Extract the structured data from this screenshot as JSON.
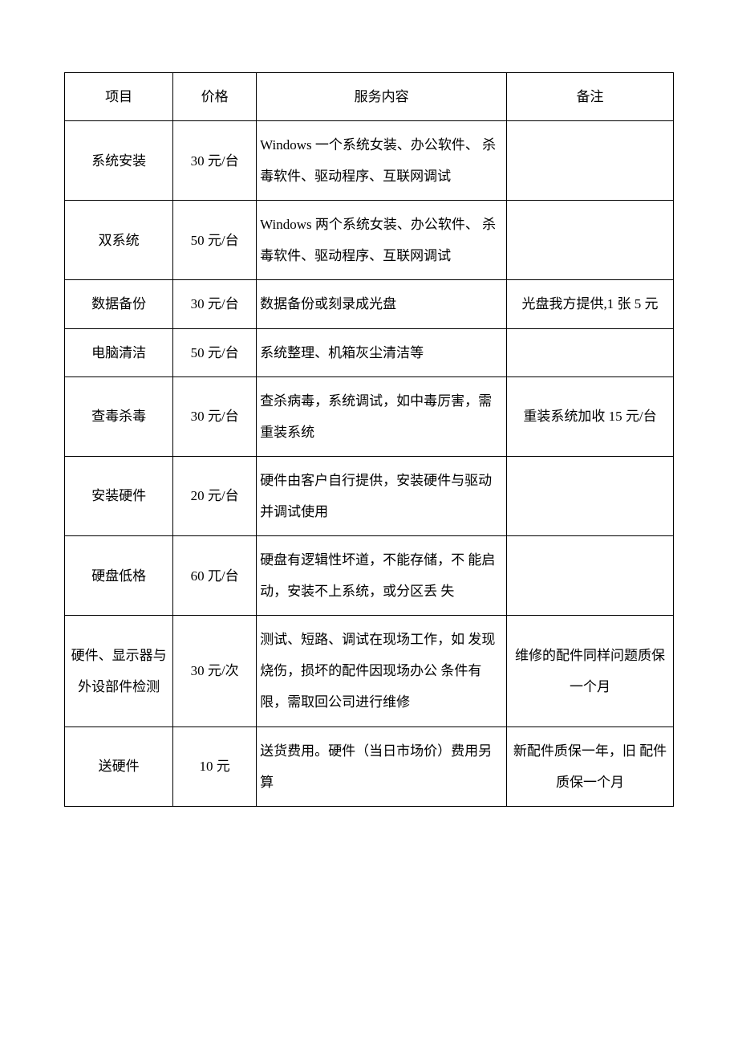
{
  "table": {
    "border_color": "#000000",
    "text_color": "#000000",
    "background_color": "#ffffff",
    "font_size_pt": 13,
    "line_height": 2.3,
    "headers": {
      "item": "项目",
      "price": "价格",
      "content": "服务内容",
      "note": "备注"
    },
    "rows": [
      {
        "item": "系统安装",
        "price": "30 元/台",
        "content": "Windows 一个系统女装、办公软件、\n杀毒软件、驱动程序、互联网调试",
        "note": ""
      },
      {
        "item": "双系统",
        "price": "50 元/台",
        "content": "Windows 两个系统女装、办公软件、\n杀毒软件、驱动程序、互联网调试",
        "note": ""
      },
      {
        "item": "数据备份",
        "price": "30 元/台",
        "content": "数据备份或刻录成光盘",
        "note": "光盘我方提供,1 张 5 元"
      },
      {
        "item": "电脑清洁",
        "price": "50 元/台",
        "content": "系统整理、机箱灰尘清洁等",
        "note": ""
      },
      {
        "item": "查毒杀毒",
        "price": "30 元/台",
        "content": "查杀病毒，系统调试，如中毒厉害，需重装系统",
        "note": "重装系统加收 15 元/台"
      },
      {
        "item": "安装硬件",
        "price": "20 元/台",
        "content": "硬件由客户自行提供，安装硬件与驱动并调试使用",
        "note": ""
      },
      {
        "item": "硬盘低格",
        "price": "60 兀/台",
        "content": "硬盘有逻辑性坏道，不能存储，不 能启动，安装不上系统，或分区丢 失",
        "note": ""
      },
      {
        "item": "硬件、显示器与外设部件检测",
        "price": "30 元/次",
        "content": "测试、短路、调试在现场工作，如 发现烧伤，损坏的配件因现场办公 条件有限，需取回公司进行维修",
        "note": "维修的配件同样问题质保一个月"
      },
      {
        "item": "送硬件",
        "price": "10 元",
        "content": "送货费用。硬件（当日市场价）费用另算",
        "note": "新配件质保一年，旧 配件质保一个月"
      }
    ]
  }
}
